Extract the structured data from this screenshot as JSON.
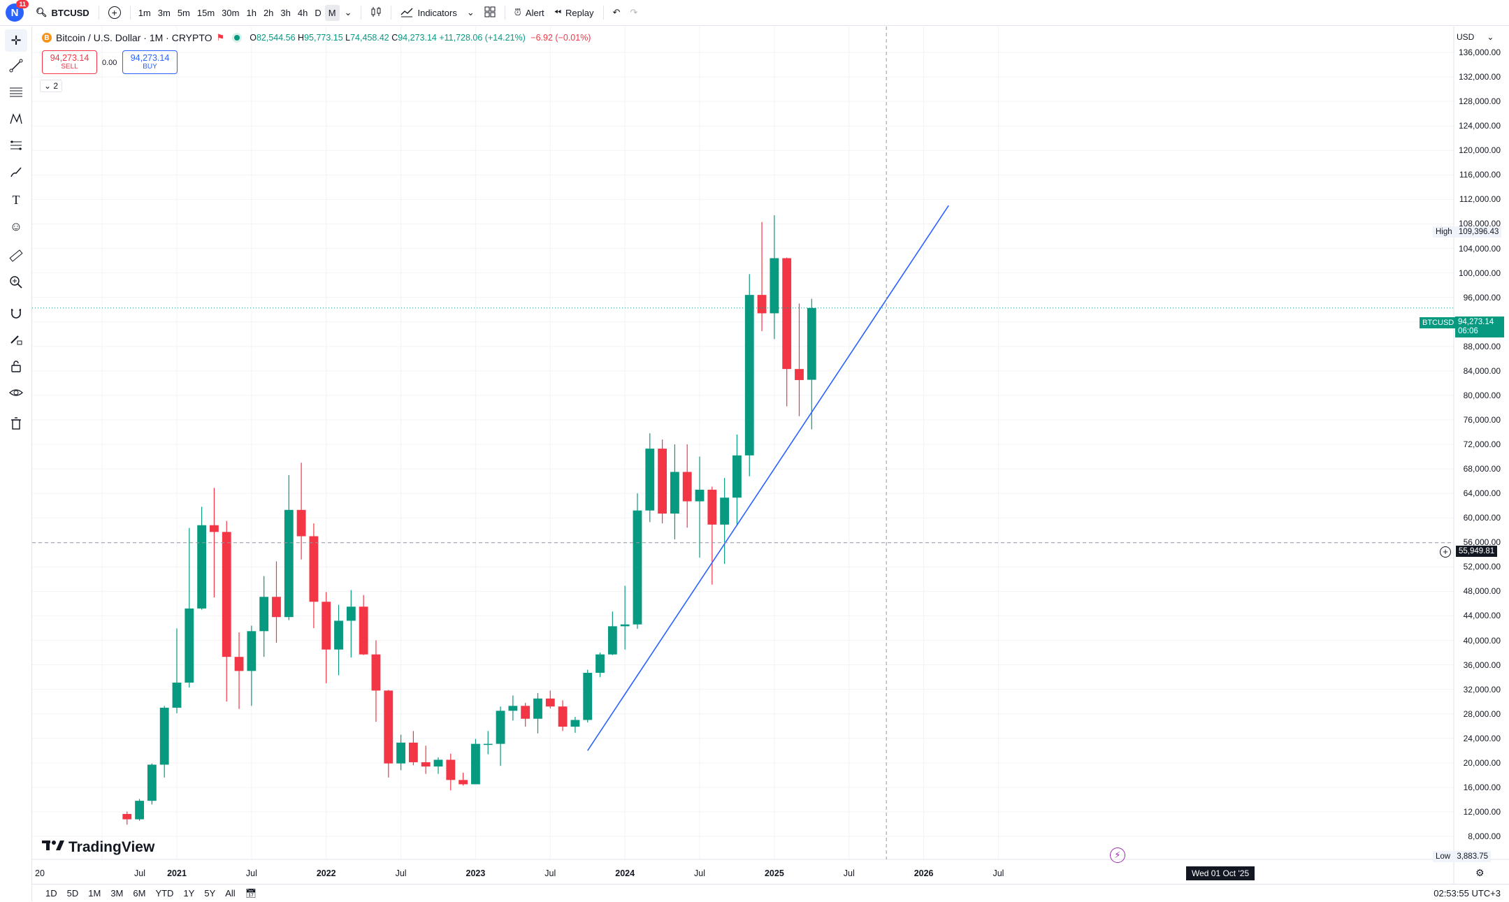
{
  "topbar": {
    "avatar_letter": "N",
    "avatar_badge": "11",
    "symbol": "BTCUSD",
    "timeframes": [
      "1m",
      "3m",
      "5m",
      "15m",
      "30m",
      "1h",
      "2h",
      "3h",
      "4h",
      "D",
      "M"
    ],
    "active_timeframe": "M",
    "indicators_label": "Indicators",
    "alert_label": "Alert",
    "replay_label": "Replay"
  },
  "legend": {
    "title": "Bitcoin / U.S. Dollar · 1M · CRYPTO",
    "open_label": "O",
    "open": "82,544.56",
    "high_label": "H",
    "high": "95,773.15",
    "low_label": "L",
    "low": "74,458.42",
    "close_label": "C",
    "close": "94,273.14",
    "change": "+11,728.06 (+14.21%)",
    "extra_change": "−6.92 (−0.01%)",
    "sell_price": "94,273.14",
    "sell_label": "SELL",
    "buy_price": "94,273.14",
    "buy_label": "BUY",
    "spread": "0.00",
    "collapse_count": "2"
  },
  "price_scale": {
    "currency": "USD",
    "labels": [
      "136,000.00",
      "132,000.00",
      "128,000.00",
      "124,000.00",
      "120,000.00",
      "116,000.00",
      "112,000.00",
      "108,000.00",
      "104,000.00",
      "100,000.00",
      "96,000.00",
      "92,000.00",
      "88,000.00",
      "84,000.00",
      "80,000.00",
      "76,000.00",
      "72,000.00",
      "68,000.00",
      "64,000.00",
      "60,000.00",
      "56,000.00",
      "52,000.00",
      "48,000.00",
      "44,000.00",
      "40,000.00",
      "36,000.00",
      "32,000.00",
      "28,000.00",
      "24,000.00",
      "20,000.00",
      "16,000.00",
      "12,000.00",
      "8,000.00"
    ],
    "high_label": "High",
    "high_value": "109,396.43",
    "low_label": "Low",
    "low_value": "3,883.75",
    "symbol_tag": "BTCUSD",
    "last_price": "94,273.14",
    "countdown": "06:06",
    "crosshair_price": "55,949.81"
  },
  "time_scale": {
    "labels": [
      "20",
      "Jul",
      "2021",
      "Jul",
      "2022",
      "Jul",
      "2023",
      "Jul",
      "2024",
      "Jul",
      "2025",
      "Jul",
      "2026",
      "Jul"
    ],
    "crosshair_date": "Wed 01 Oct '25"
  },
  "bottombar": {
    "ranges": [
      "1D",
      "5D",
      "1M",
      "3M",
      "6M",
      "YTD",
      "1Y",
      "5Y",
      "All"
    ],
    "clock": "02:53:55 UTC+3"
  },
  "brand": "TradingView",
  "chart_data": {
    "type": "candlestick",
    "title": "Bitcoin / U.S. Dollar · 1M · CRYPTO",
    "x_unit": "month",
    "ylim": [
      4000,
      138000
    ],
    "colors": {
      "up": "#089981",
      "down": "#f23645",
      "trendline": "#2962ff"
    },
    "candles": [
      {
        "t": "2020-09",
        "o": 11650,
        "h": 12050,
        "l": 9900,
        "c": 10780
      },
      {
        "t": "2020-10",
        "o": 10780,
        "h": 14100,
        "l": 10550,
        "c": 13800
      },
      {
        "t": "2020-11",
        "o": 13800,
        "h": 19900,
        "l": 13200,
        "c": 19700
      },
      {
        "t": "2020-12",
        "o": 19700,
        "h": 29300,
        "l": 17600,
        "c": 29000
      },
      {
        "t": "2021-01",
        "o": 29000,
        "h": 41950,
        "l": 28100,
        "c": 33100
      },
      {
        "t": "2021-02",
        "o": 33100,
        "h": 58350,
        "l": 32300,
        "c": 45200
      },
      {
        "t": "2021-03",
        "o": 45200,
        "h": 61800,
        "l": 45000,
        "c": 58800
      },
      {
        "t": "2021-04",
        "o": 58800,
        "h": 64900,
        "l": 47000,
        "c": 57700
      },
      {
        "t": "2021-05",
        "o": 57700,
        "h": 59500,
        "l": 30000,
        "c": 37300
      },
      {
        "t": "2021-06",
        "o": 37300,
        "h": 41300,
        "l": 28800,
        "c": 35000
      },
      {
        "t": "2021-07",
        "o": 35000,
        "h": 42400,
        "l": 29300,
        "c": 41500
      },
      {
        "t": "2021-08",
        "o": 41500,
        "h": 50500,
        "l": 37300,
        "c": 47100
      },
      {
        "t": "2021-09",
        "o": 47100,
        "h": 52900,
        "l": 39600,
        "c": 43800
      },
      {
        "t": "2021-10",
        "o": 43800,
        "h": 67000,
        "l": 43300,
        "c": 61300
      },
      {
        "t": "2021-11",
        "o": 61300,
        "h": 69000,
        "l": 53200,
        "c": 57000
      },
      {
        "t": "2021-12",
        "o": 57000,
        "h": 59100,
        "l": 42000,
        "c": 46300
      },
      {
        "t": "2022-01",
        "o": 46300,
        "h": 47900,
        "l": 33000,
        "c": 38500
      },
      {
        "t": "2022-02",
        "o": 38500,
        "h": 45800,
        "l": 34300,
        "c": 43200
      },
      {
        "t": "2022-03",
        "o": 43200,
        "h": 48200,
        "l": 37200,
        "c": 45500
      },
      {
        "t": "2022-04",
        "o": 45500,
        "h": 47400,
        "l": 37600,
        "c": 37700
      },
      {
        "t": "2022-05",
        "o": 37700,
        "h": 40000,
        "l": 26700,
        "c": 31800
      },
      {
        "t": "2022-06",
        "o": 31800,
        "h": 31900,
        "l": 17600,
        "c": 19900
      },
      {
        "t": "2022-07",
        "o": 19900,
        "h": 24600,
        "l": 18800,
        "c": 23300
      },
      {
        "t": "2022-08",
        "o": 23300,
        "h": 25200,
        "l": 19600,
        "c": 20100
      },
      {
        "t": "2022-09",
        "o": 20100,
        "h": 22800,
        "l": 18200,
        "c": 19400
      },
      {
        "t": "2022-10",
        "o": 19400,
        "h": 20900,
        "l": 18200,
        "c": 20500
      },
      {
        "t": "2022-11",
        "o": 20500,
        "h": 21500,
        "l": 15500,
        "c": 17200
      },
      {
        "t": "2022-12",
        "o": 17200,
        "h": 18400,
        "l": 16300,
        "c": 16500
      },
      {
        "t": "2023-01",
        "o": 16500,
        "h": 23900,
        "l": 16500,
        "c": 23100
      },
      {
        "t": "2023-02",
        "o": 23100,
        "h": 25200,
        "l": 21400,
        "c": 23100
      },
      {
        "t": "2023-03",
        "o": 23100,
        "h": 29200,
        "l": 19500,
        "c": 28500
      },
      {
        "t": "2023-04",
        "o": 28500,
        "h": 31000,
        "l": 26900,
        "c": 29300
      },
      {
        "t": "2023-05",
        "o": 29300,
        "h": 29800,
        "l": 25900,
        "c": 27200
      },
      {
        "t": "2023-06",
        "o": 27200,
        "h": 31400,
        "l": 24800,
        "c": 30500
      },
      {
        "t": "2023-07",
        "o": 30500,
        "h": 31800,
        "l": 28900,
        "c": 29200
      },
      {
        "t": "2023-08",
        "o": 29200,
        "h": 30200,
        "l": 25200,
        "c": 25900
      },
      {
        "t": "2023-09",
        "o": 25900,
        "h": 27500,
        "l": 24900,
        "c": 27000
      },
      {
        "t": "2023-10",
        "o": 27000,
        "h": 35200,
        "l": 26600,
        "c": 34700
      },
      {
        "t": "2023-11",
        "o": 34700,
        "h": 38000,
        "l": 34000,
        "c": 37700
      },
      {
        "t": "2023-12",
        "o": 37700,
        "h": 44700,
        "l": 37600,
        "c": 42300
      },
      {
        "t": "2024-01",
        "o": 42300,
        "h": 48900,
        "l": 38500,
        "c": 42600
      },
      {
        "t": "2024-02",
        "o": 42600,
        "h": 64000,
        "l": 41900,
        "c": 61200
      },
      {
        "t": "2024-03",
        "o": 61200,
        "h": 73800,
        "l": 59300,
        "c": 71300
      },
      {
        "t": "2024-04",
        "o": 71300,
        "h": 72800,
        "l": 59100,
        "c": 60700
      },
      {
        "t": "2024-05",
        "o": 60700,
        "h": 72000,
        "l": 56500,
        "c": 67500
      },
      {
        "t": "2024-06",
        "o": 67500,
        "h": 72000,
        "l": 58400,
        "c": 62700
      },
      {
        "t": "2024-07",
        "o": 62700,
        "h": 70000,
        "l": 53500,
        "c": 64600
      },
      {
        "t": "2024-08",
        "o": 64600,
        "h": 65100,
        "l": 49100,
        "c": 58900
      },
      {
        "t": "2024-09",
        "o": 58900,
        "h": 66500,
        "l": 52500,
        "c": 63300
      },
      {
        "t": "2024-10",
        "o": 63300,
        "h": 73600,
        "l": 58900,
        "c": 70200
      },
      {
        "t": "2024-11",
        "o": 70200,
        "h": 99800,
        "l": 66800,
        "c": 96400
      },
      {
        "t": "2024-12",
        "o": 96400,
        "h": 108300,
        "l": 90500,
        "c": 93400
      },
      {
        "t": "2025-01",
        "o": 93400,
        "h": 109400,
        "l": 89200,
        "c": 102400
      },
      {
        "t": "2025-02",
        "o": 102400,
        "h": 102500,
        "l": 78200,
        "c": 84300
      },
      {
        "t": "2025-03",
        "o": 84300,
        "h": 95000,
        "l": 76600,
        "c": 82500
      },
      {
        "t": "2025-04",
        "o": 82545,
        "h": 95773,
        "l": 74458,
        "c": 94273
      }
    ],
    "trendline": [
      {
        "t": "2023-10",
        "price": 22000
      },
      {
        "t": "2026-03",
        "price": 111000
      }
    ],
    "crosshair": {
      "t": "2025-10",
      "price": 55949.81
    },
    "last_price": 94273.14
  }
}
